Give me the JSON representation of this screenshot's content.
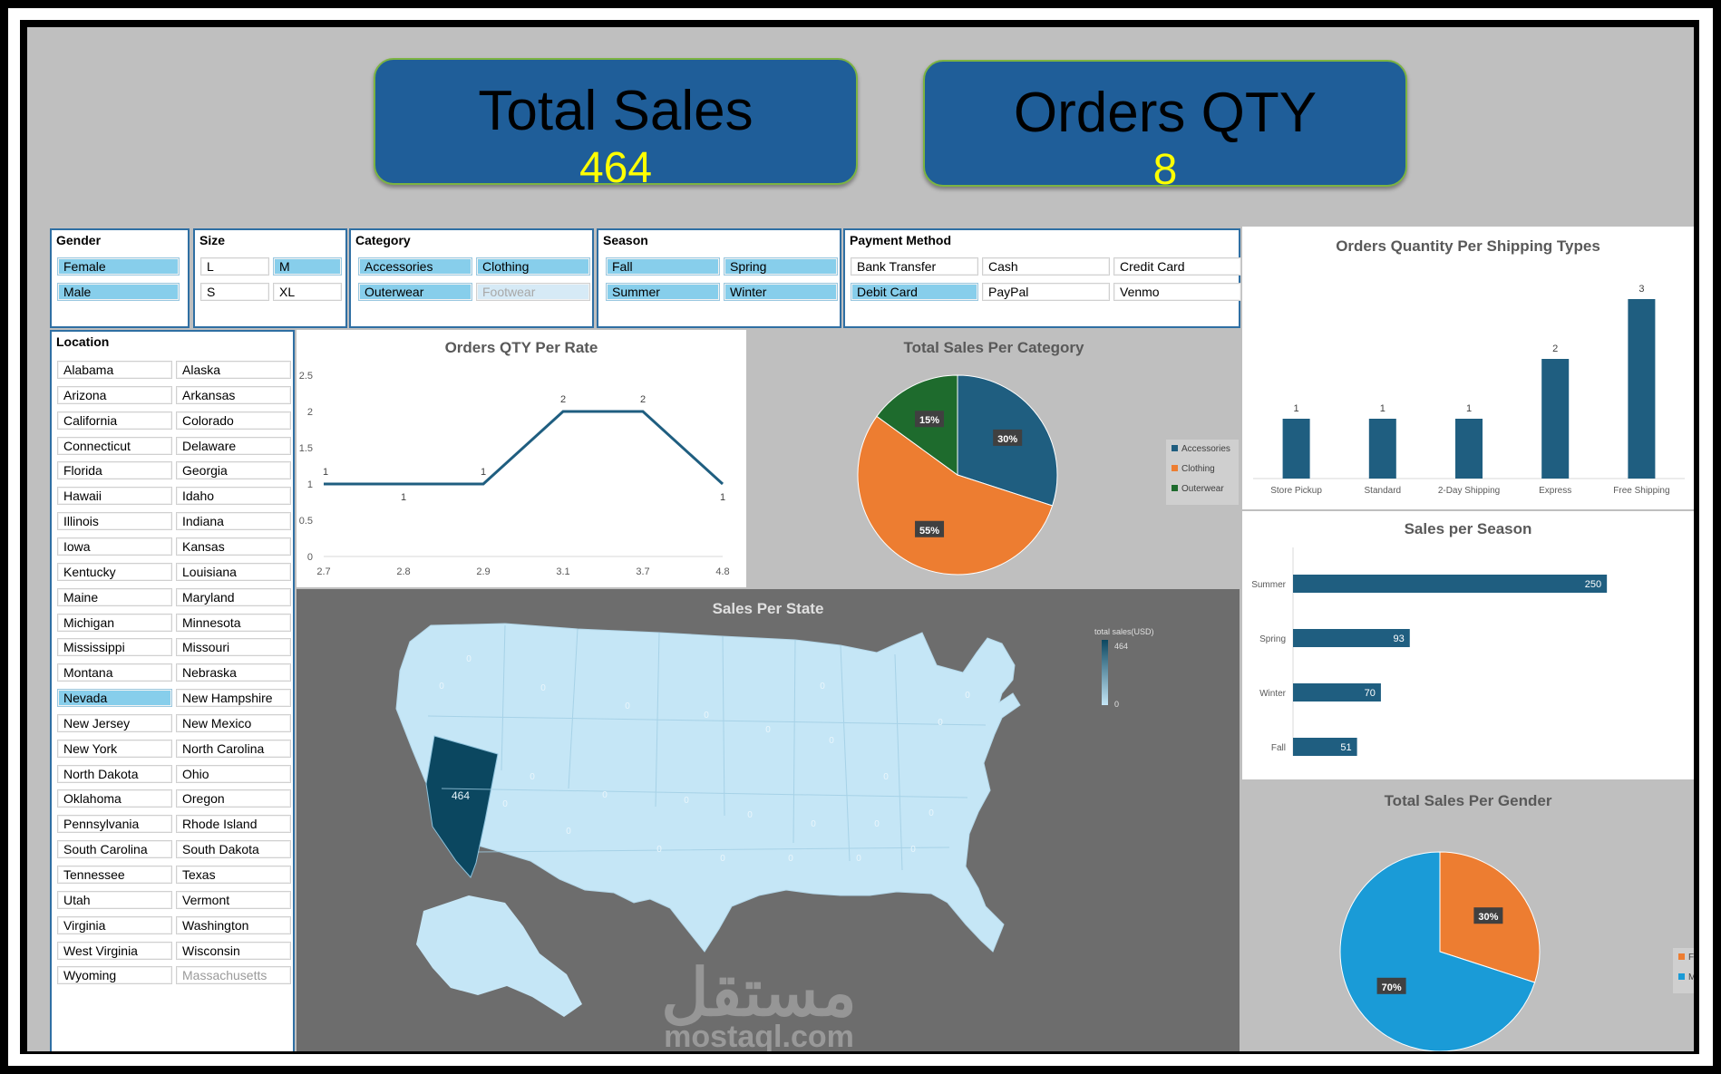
{
  "kpis": {
    "total_sales": {
      "title": "Total Sales",
      "value": "464"
    },
    "orders_qty": {
      "title": "Orders QTY",
      "value": "8"
    }
  },
  "slicers": {
    "gender": {
      "title": "Gender",
      "items": [
        {
          "label": "Female",
          "state": "sel"
        },
        {
          "label": "Male",
          "state": "sel"
        }
      ]
    },
    "size": {
      "title": "Size",
      "items": [
        {
          "label": "L",
          "state": "off"
        },
        {
          "label": "M",
          "state": "sel"
        },
        {
          "label": "S",
          "state": "off"
        },
        {
          "label": "XL",
          "state": "off"
        }
      ]
    },
    "category": {
      "title": "Category",
      "items": [
        {
          "label": "Accessories",
          "state": "sel"
        },
        {
          "label": "Clothing",
          "state": "sel"
        },
        {
          "label": "Outerwear",
          "state": "sel"
        },
        {
          "label": "Footwear",
          "state": "dim"
        }
      ]
    },
    "season": {
      "title": "Season",
      "items": [
        {
          "label": "Fall",
          "state": "sel"
        },
        {
          "label": "Spring",
          "state": "sel"
        },
        {
          "label": "Summer",
          "state": "sel"
        },
        {
          "label": "Winter",
          "state": "sel"
        }
      ]
    },
    "payment": {
      "title": "Payment Method",
      "items": [
        {
          "label": "Bank Transfer",
          "state": "off"
        },
        {
          "label": "Cash",
          "state": "off"
        },
        {
          "label": "Credit Card",
          "state": "off"
        },
        {
          "label": "Debit Card",
          "state": "sel"
        },
        {
          "label": "PayPal",
          "state": "off"
        },
        {
          "label": "Venmo",
          "state": "off"
        }
      ]
    },
    "location": {
      "title": "Location",
      "items": [
        {
          "label": "Alabama",
          "state": "off"
        },
        {
          "label": "Alaska",
          "state": "off"
        },
        {
          "label": "Arizona",
          "state": "off"
        },
        {
          "label": "Arkansas",
          "state": "off"
        },
        {
          "label": "California",
          "state": "off"
        },
        {
          "label": "Colorado",
          "state": "off"
        },
        {
          "label": "Connecticut",
          "state": "off"
        },
        {
          "label": "Delaware",
          "state": "off"
        },
        {
          "label": "Florida",
          "state": "off"
        },
        {
          "label": "Georgia",
          "state": "off"
        },
        {
          "label": "Hawaii",
          "state": "off"
        },
        {
          "label": "Idaho",
          "state": "off"
        },
        {
          "label": "Illinois",
          "state": "off"
        },
        {
          "label": "Indiana",
          "state": "off"
        },
        {
          "label": "Iowa",
          "state": "off"
        },
        {
          "label": "Kansas",
          "state": "off"
        },
        {
          "label": "Kentucky",
          "state": "off"
        },
        {
          "label": "Louisiana",
          "state": "off"
        },
        {
          "label": "Maine",
          "state": "off"
        },
        {
          "label": "Maryland",
          "state": "off"
        },
        {
          "label": "Michigan",
          "state": "off"
        },
        {
          "label": "Minnesota",
          "state": "off"
        },
        {
          "label": "Mississippi",
          "state": "off"
        },
        {
          "label": "Missouri",
          "state": "off"
        },
        {
          "label": "Montana",
          "state": "off"
        },
        {
          "label": "Nebraska",
          "state": "off"
        },
        {
          "label": "Nevada",
          "state": "sel"
        },
        {
          "label": "New Hampshire",
          "state": "off"
        },
        {
          "label": "New Jersey",
          "state": "off"
        },
        {
          "label": "New Mexico",
          "state": "off"
        },
        {
          "label": "New York",
          "state": "off"
        },
        {
          "label": "North Carolina",
          "state": "off"
        },
        {
          "label": "North Dakota",
          "state": "off"
        },
        {
          "label": "Ohio",
          "state": "off"
        },
        {
          "label": "Oklahoma",
          "state": "off"
        },
        {
          "label": "Oregon",
          "state": "off"
        },
        {
          "label": "Pennsylvania",
          "state": "off"
        },
        {
          "label": "Rhode Island",
          "state": "off"
        },
        {
          "label": "South Carolina",
          "state": "off"
        },
        {
          "label": "South Dakota",
          "state": "off"
        },
        {
          "label": "Tennessee",
          "state": "off"
        },
        {
          "label": "Texas",
          "state": "off"
        },
        {
          "label": "Utah",
          "state": "off"
        },
        {
          "label": "Vermont",
          "state": "off"
        },
        {
          "label": "Virginia",
          "state": "off"
        },
        {
          "label": "Washington",
          "state": "off"
        },
        {
          "label": "West Virginia",
          "state": "off"
        },
        {
          "label": "Wisconsin",
          "state": "off"
        },
        {
          "label": "Wyoming",
          "state": "off"
        },
        {
          "label": "Massachusetts",
          "state": "dimw"
        }
      ]
    }
  },
  "colors": {
    "primary": "#1f5e80",
    "orange": "#ed7d31",
    "green": "#1e6b2d",
    "sky": "#1a9bd7",
    "kpi_bg": "#1f5e99",
    "kpi_value": "#ffff00",
    "map_land": "#c5e6f6",
    "map_hi": "#0b4760"
  },
  "chart_data": [
    {
      "id": "rate",
      "type": "line",
      "title": "Orders QTY Per Rate",
      "x": [
        "2.7",
        "2.8",
        "2.9",
        "3.1",
        "3.7",
        "4.8"
      ],
      "values": [
        1,
        1,
        1,
        2,
        2,
        1
      ],
      "data_labels": [
        "1",
        "1",
        "1",
        "2",
        "2",
        "1"
      ],
      "ylim": [
        0,
        2.5
      ],
      "yticks": [
        "0",
        "0.5",
        "1",
        "1.5",
        "2",
        "2.5"
      ],
      "xlabel": "",
      "ylabel": ""
    },
    {
      "id": "category",
      "type": "pie",
      "title": "Total Sales Per Category",
      "slices": [
        {
          "name": "Accessories",
          "value": 30,
          "label": "30%"
        },
        {
          "name": "Clothing",
          "value": 55,
          "label": "55%"
        },
        {
          "name": "Outerwear",
          "value": 15,
          "label": "15%"
        }
      ],
      "legend": "right"
    },
    {
      "id": "shipping",
      "type": "bar",
      "title": "Orders Quantity Per Shipping Types",
      "categories": [
        "Store Pickup",
        "Standard",
        "2-Day Shipping",
        "Express",
        "Free Shipping"
      ],
      "values": [
        1,
        1,
        1,
        2,
        3
      ],
      "data_labels": [
        "1",
        "1",
        "1",
        "2",
        "3"
      ],
      "ylim": [
        0,
        3
      ]
    },
    {
      "id": "season",
      "type": "bar",
      "orientation": "horizontal",
      "title": "Sales per Season",
      "categories": [
        "Summer",
        "Spring",
        "Winter",
        "Fall"
      ],
      "values": [
        250,
        93,
        70,
        51
      ],
      "data_labels": [
        "250",
        "93",
        "70",
        "51"
      ],
      "xlim": [
        0,
        260
      ]
    },
    {
      "id": "gender",
      "type": "pie",
      "title": "Total Sales Per Gender",
      "slices": [
        {
          "name": "Female",
          "value": 30,
          "label": "30%"
        },
        {
          "name": "Male",
          "value": 70,
          "label": "70%"
        }
      ],
      "legend": "right"
    },
    {
      "id": "state",
      "type": "map",
      "title": "Sales Per State",
      "highlight": {
        "state": "Nevada",
        "value": "464"
      },
      "other_value": "0",
      "legend_title": "total sales(USD)",
      "legend_max": "464",
      "legend_min": "0"
    }
  ],
  "watermark": {
    "brand": "mostaql.com",
    "arabic": "مستقل"
  }
}
